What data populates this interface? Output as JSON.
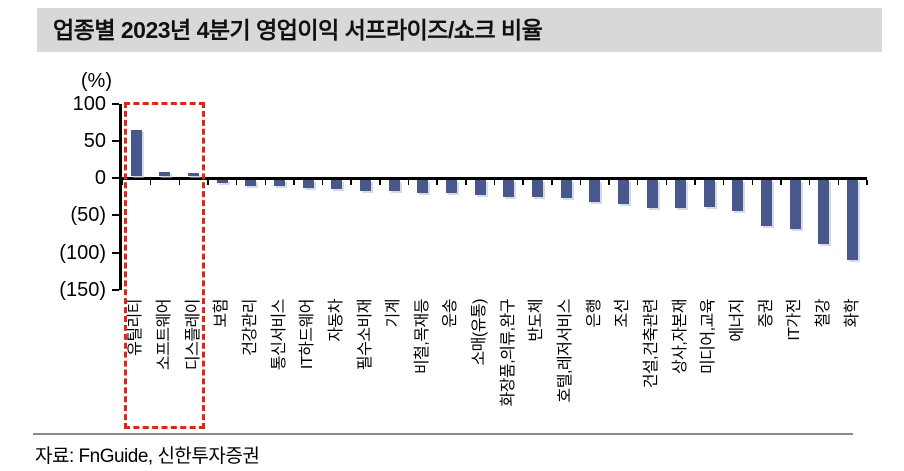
{
  "header": {
    "title": "업종별 2023년 4분기 영업이익 서프라이즈/쇼크 비율"
  },
  "chart_data": {
    "type": "bar",
    "title": "업종별 2023년 4분기 영업이익 서프라이즈/쇼크 비율",
    "unit_label": "(%)",
    "xlabel": "",
    "ylabel": "",
    "ylim": [
      -150,
      100
    ],
    "grid": false,
    "legend": false,
    "y_tick_values": [
      100,
      50,
      0,
      -50,
      -100,
      -150
    ],
    "y_tick_labels": [
      "100",
      "50",
      "0",
      "(50)",
      "(100)",
      "(150)"
    ],
    "categories": [
      "유틸리티",
      "소프트웨어",
      "디스플레이",
      "보험",
      "건강관리",
      "통신서비스",
      "IT하드웨어",
      "자동차",
      "필수소비재",
      "기계",
      "비철,목재등",
      "운송",
      "소매(유통)",
      "화장품,의류,완구",
      "반도체",
      "호텔,레저서비스",
      "은행",
      "조선",
      "건설,건축관련",
      "상사,자본재",
      "미디어,교육",
      "에너지",
      "증권",
      "IT가전",
      "철강",
      "화학"
    ],
    "values": [
      62,
      6,
      5,
      -5,
      -9,
      -9,
      -12,
      -13,
      -15,
      -16,
      -18,
      -18,
      -21,
      -23,
      -24,
      -25,
      -30,
      -33,
      -38,
      -38,
      -37,
      -42,
      -63,
      -67,
      -87,
      -108
    ],
    "bar_color": "#48588C",
    "axis_color": "#000000",
    "highlight_box": {
      "from_category": "유틸리티",
      "to_category": "디스플레이",
      "style": "dashed",
      "color": "#E02518"
    }
  },
  "footer": {
    "source": "자료: FnGuide, 신한투자증권"
  }
}
